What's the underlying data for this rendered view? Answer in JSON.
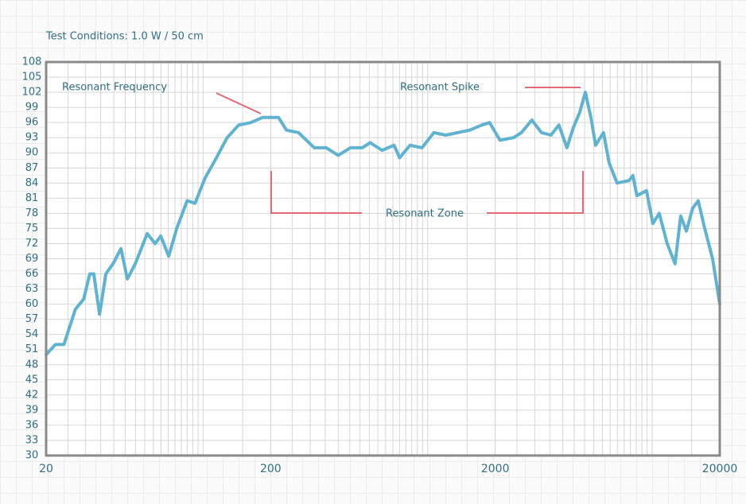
{
  "chart_data": {
    "type": "line",
    "subtitle": "Test Conditions: 1.0 W / 50 cm",
    "annotations": [
      "Resonant Frequency",
      "Resonant Spike",
      "Resonant Zone"
    ],
    "x": [
      20,
      22,
      24,
      27,
      29.4,
      31.3,
      32.6,
      34.6,
      36.9,
      39.7,
      43.1,
      46,
      49.9,
      56.4,
      61.2,
      64.8,
      70.3,
      76.3,
      84.9,
      92.1,
      102,
      113,
      128,
      144,
      163,
      184,
      217,
      235,
      266,
      313,
      354,
      400,
      453,
      511,
      555,
      627,
      709,
      750,
      835,
      944,
      1066,
      1205,
      1362,
      1540,
      1741,
      1888,
      2100,
      2414,
      2618,
      2911,
      3214,
      3541,
      3845,
      4170,
      4456,
      4755,
      5035,
      5335,
      5600,
      6070,
      6430,
      6980,
      7890,
      8210,
      8550,
      9440,
      10070,
      10750,
      11670,
      12650,
      13400,
      14200,
      15140,
      16040,
      17140,
      18580,
      20000
    ],
    "values": [
      50,
      52,
      52,
      59,
      61,
      66,
      66,
      58,
      66,
      68,
      71,
      65,
      68,
      74,
      72,
      73.5,
      69.5,
      75,
      80.5,
      80,
      85,
      88.5,
      93,
      95.5,
      96,
      97,
      97,
      94.5,
      94,
      91,
      91,
      89.5,
      91,
      91,
      92,
      90.5,
      91.5,
      89,
      91.5,
      91,
      94,
      93.5,
      94,
      94.5,
      95.5,
      96,
      92.5,
      93,
      94,
      96.5,
      94,
      93.5,
      95.5,
      91,
      95,
      98,
      102,
      97,
      91.5,
      94,
      88,
      84,
      84.5,
      85.5,
      81.5,
      82.5,
      76,
      78,
      72,
      68,
      77.5,
      74.5,
      79,
      80.5,
      75,
      69,
      60
    ],
    "color": "#5fb3d0",
    "xscale": "log",
    "xlim": [
      20,
      20000
    ],
    "xticks": [
      20,
      200,
      2000,
      20000
    ],
    "ylim": [
      30,
      108
    ],
    "yticks": [
      30,
      33,
      36,
      39,
      42,
      45,
      48,
      51,
      54,
      57,
      60,
      63,
      66,
      69,
      72,
      75,
      78,
      81,
      84,
      87,
      90,
      93,
      96,
      99,
      102,
      105,
      108
    ],
    "grid": true
  }
}
